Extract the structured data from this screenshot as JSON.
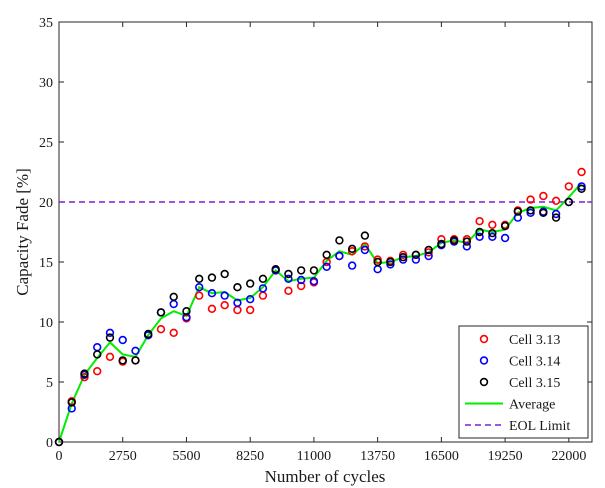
{
  "chart_data": {
    "type": "scatter",
    "title": "",
    "xlabel": "Number of cycles",
    "ylabel": "Capacity Fade [%]",
    "xlim": [
      0,
      23000
    ],
    "ylim": [
      0,
      35
    ],
    "xticks": [
      0,
      2750,
      5500,
      8250,
      11000,
      13750,
      16500,
      19250,
      22000
    ],
    "yticks": [
      0,
      5,
      10,
      15,
      20,
      25,
      30,
      35
    ],
    "grid": false,
    "legend_position": "bottom-right",
    "x": [
      0,
      550,
      1100,
      1650,
      2200,
      2750,
      3300,
      3850,
      4400,
      4950,
      5500,
      6050,
      6600,
      7150,
      7700,
      8250,
      8800,
      9350,
      9900,
      10450,
      11000,
      11550,
      12100,
      12650,
      13200,
      13750,
      14300,
      14850,
      15400,
      15950,
      16500,
      17050,
      17600,
      18150,
      18700,
      19250,
      19800,
      20350,
      20900,
      21450,
      22000,
      22550
    ],
    "series": [
      {
        "name": "Cell 3.13",
        "marker": "circle",
        "color": "#ff0000",
        "values": [
          0,
          3.4,
          5.4,
          5.9,
          7.1,
          6.7,
          6.8,
          8.9,
          9.4,
          9.1,
          10.3,
          12.2,
          11.1,
          11.4,
          11.0,
          11.0,
          12.2,
          14.3,
          12.6,
          13.0,
          13.3,
          15.0,
          15.5,
          15.9,
          16.3,
          15.2,
          15.1,
          15.6,
          15.6,
          15.8,
          16.9,
          16.9,
          16.9,
          18.4,
          18.1,
          18.1,
          19.3,
          20.2,
          20.5,
          20.1,
          21.3,
          22.5
        ]
      },
      {
        "name": "Cell 3.14",
        "marker": "circle",
        "color": "#0000ff",
        "values": [
          0,
          2.8,
          5.6,
          7.9,
          9.1,
          8.5,
          7.6,
          8.9,
          10.8,
          11.5,
          10.4,
          12.9,
          12.4,
          12.2,
          11.6,
          11.9,
          12.8,
          14.3,
          13.6,
          13.5,
          13.4,
          14.6,
          15.5,
          14.7,
          16.0,
          14.4,
          14.8,
          15.2,
          15.2,
          15.5,
          16.4,
          16.7,
          16.3,
          17.1,
          17.1,
          17.0,
          18.7,
          19.1,
          19.2,
          19.0,
          20.0,
          21.3
        ]
      },
      {
        "name": "Cell 3.15",
        "marker": "circle",
        "color": "#000000",
        "values": [
          0,
          3.3,
          5.7,
          7.3,
          8.7,
          6.8,
          6.8,
          9.0,
          10.8,
          12.1,
          10.9,
          13.6,
          13.7,
          14.0,
          12.9,
          13.2,
          13.6,
          14.4,
          14.0,
          14.3,
          14.3,
          15.6,
          16.8,
          16.1,
          17.2,
          15.0,
          15.0,
          15.4,
          15.6,
          16.0,
          16.5,
          16.8,
          16.7,
          17.5,
          17.4,
          18.0,
          19.2,
          19.3,
          19.1,
          18.7,
          20.0,
          21.1
        ]
      },
      {
        "name": "Average",
        "marker": "line",
        "color": "#00ee00",
        "values": [
          0,
          3.2,
          5.6,
          7.0,
          8.3,
          7.3,
          7.1,
          8.9,
          10.3,
          10.9,
          10.5,
          12.9,
          12.4,
          12.5,
          11.8,
          12.0,
          12.9,
          14.3,
          13.4,
          13.6,
          13.7,
          15.1,
          15.9,
          15.6,
          16.5,
          14.9,
          15.0,
          15.4,
          15.5,
          15.8,
          16.6,
          16.8,
          16.6,
          17.7,
          17.5,
          17.7,
          19.1,
          19.5,
          19.6,
          19.3,
          20.4,
          21.6
        ]
      }
    ],
    "reference_lines": [
      {
        "name": "EOL Limit",
        "y": 20,
        "style": "dashed",
        "color": "#7a1fe0"
      }
    ]
  }
}
